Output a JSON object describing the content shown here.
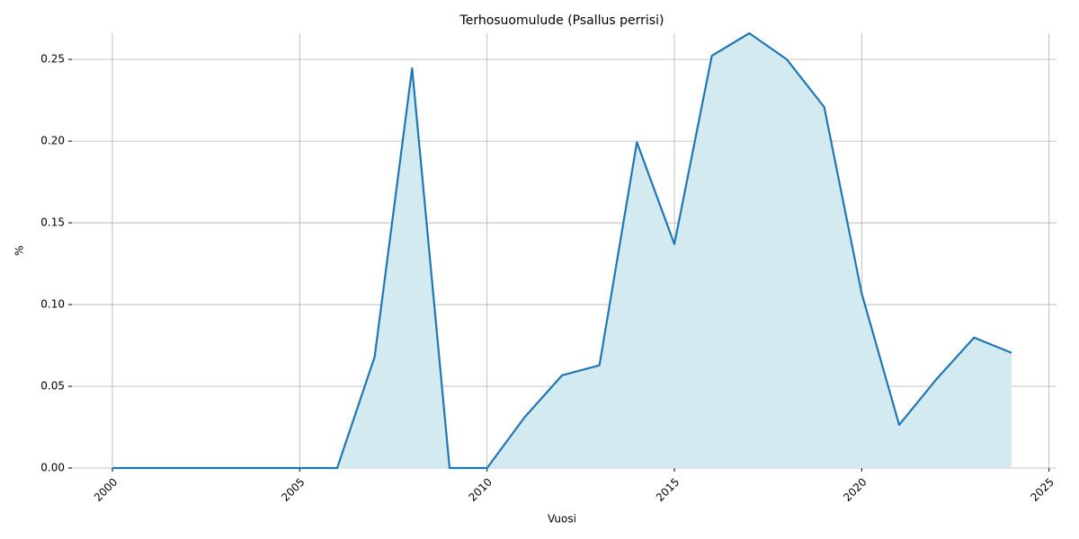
{
  "chart_data": {
    "type": "area_line",
    "title": "Terhosuomulude (Psallus perrisi)",
    "x_label": "Vuosi",
    "y_label": "%",
    "x": [
      2000,
      2001,
      2002,
      2003,
      2004,
      2005,
      2006,
      2007,
      2008,
      2009,
      2010,
      2011,
      2012,
      2013,
      2014,
      2015,
      2016,
      2017,
      2018,
      2019,
      2020,
      2021,
      2022,
      2023,
      2024
    ],
    "values": [
      0,
      0,
      0,
      0,
      0,
      0,
      0,
      0.068,
      0.2445,
      0,
      0,
      0.031,
      0.0567,
      0.0628,
      0.1993,
      0.137,
      0.2522,
      0.266,
      0.25,
      0.2208,
      0.1068,
      0.0264,
      0.0545,
      0.0798,
      0.0705
    ],
    "color": "#1f77b4",
    "fill_color": "#d4eaf1",
    "xlim": [
      1998.92,
      2025.2
    ],
    "ylim": [
      0,
      0.266
    ],
    "xticks": [
      2000,
      2005,
      2010,
      2015,
      2020,
      2025
    ],
    "yticks": [
      {
        "value": 0,
        "label": "0.00"
      },
      {
        "value": 0.05,
        "label": "0.05"
      },
      {
        "value": 0.1,
        "label": "0.10"
      },
      {
        "value": 0.15,
        "label": "0.15"
      },
      {
        "value": 0.2,
        "label": "0.20"
      },
      {
        "value": 0.25,
        "label": "0.25"
      }
    ],
    "grid": true
  }
}
